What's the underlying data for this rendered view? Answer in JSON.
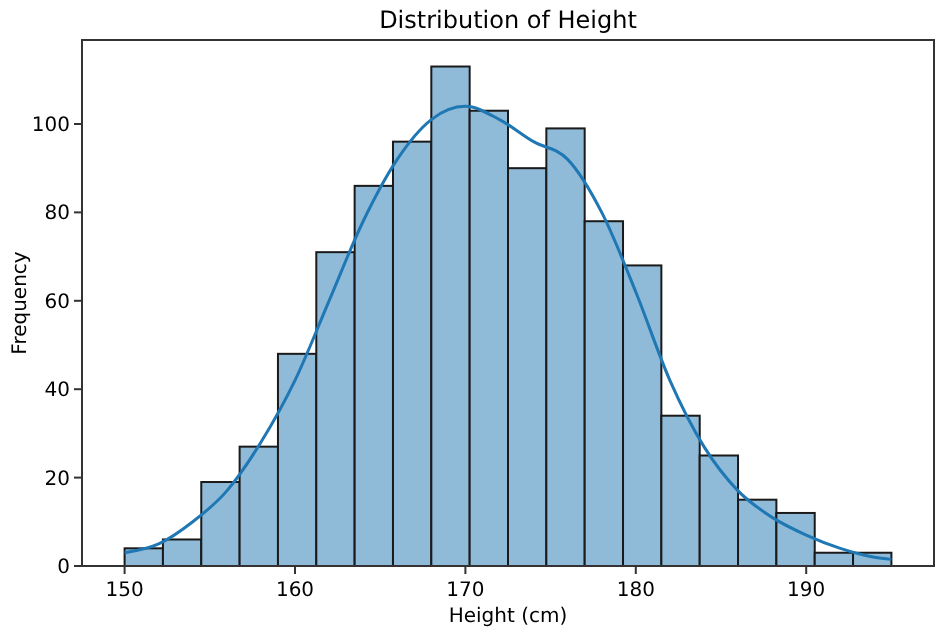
{
  "chart_data": {
    "type": "histogram",
    "title": "Distribution of Height",
    "xlabel": "Height (cm)",
    "ylabel": "Frequency",
    "bins": [
      150,
      152.25,
      154.5,
      156.75,
      159,
      161.25,
      163.5,
      165.75,
      168,
      170.25,
      172.5,
      174.75,
      177,
      179.25,
      181.5,
      183.75,
      186,
      188.25,
      190.5,
      192.75,
      195
    ],
    "values": [
      4,
      6,
      19,
      27,
      48,
      71,
      86,
      96,
      113,
      103,
      90,
      99,
      78,
      68,
      34,
      25,
      15,
      12,
      3,
      3
    ],
    "color": "#8fbbd9",
    "series": [
      {
        "type": "line",
        "color": "#1f77b4",
        "x": [
          150,
          152,
          154,
          156,
          158,
          160,
          162,
          164,
          166,
          168,
          170,
          172,
          174,
          176,
          178,
          180,
          182,
          184,
          186,
          188,
          190,
          192,
          194,
          195
        ],
        "values": [
          3,
          5,
          10,
          17,
          28,
          42,
          60,
          78,
          92,
          101,
          104,
          101,
          96,
          92,
          80,
          62,
          42,
          27,
          17,
          11,
          7,
          4,
          2,
          1.5
        ]
      }
    ],
    "xlim": [
      147.5,
      197.5
    ],
    "xticks": [
      150,
      160,
      170,
      180,
      190
    ],
    "ylim": [
      0,
      119
    ],
    "yticks": [
      0,
      20,
      40,
      60,
      80,
      100
    ],
    "grid": false
  }
}
